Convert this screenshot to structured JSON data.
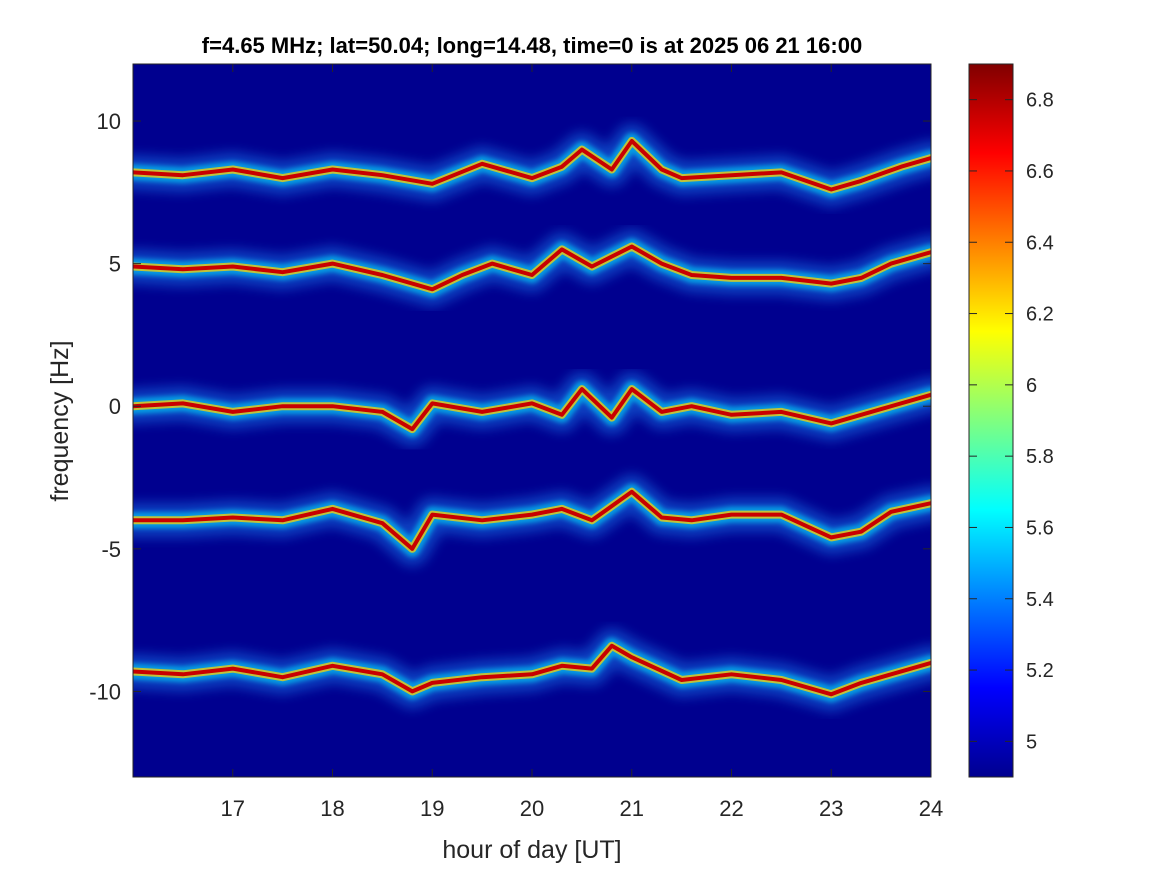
{
  "chart_data": {
    "type": "heatmap",
    "title": "f=4.65 MHz;  lat=50.04; long=14.48, time=0 is at 2025 06 21 16:00",
    "xlabel": "hour of day [UT]",
    "ylabel": "frequency [Hz]",
    "xlim": [
      16,
      24
    ],
    "ylim": [
      -13,
      12
    ],
    "xticks": [
      17,
      18,
      19,
      20,
      21,
      22,
      23,
      24
    ],
    "xtick_labels": [
      "17",
      "18",
      "19",
      "20",
      "21",
      "22",
      "23",
      "24"
    ],
    "yticks": [
      -10,
      -5,
      0,
      5,
      10
    ],
    "ytick_labels": [
      "-10",
      "-5",
      "0",
      "5",
      "10"
    ],
    "colormap": "jet",
    "background_color": "#00008f",
    "colorbar": {
      "range": [
        4.9,
        6.9
      ],
      "ticks": [
        5,
        5.2,
        5.4,
        5.6,
        5.8,
        6,
        6.2,
        6.4,
        6.6,
        6.8
      ],
      "tick_labels": [
        "5",
        "5.2",
        "5.4",
        "5.6",
        "5.8",
        "6",
        "6.2",
        "6.4",
        "6.6",
        "6.8"
      ],
      "position": "right"
    },
    "traces": [
      {
        "base": 8.2,
        "x": [
          16.0,
          16.5,
          17.0,
          17.5,
          18.0,
          18.5,
          19.0,
          19.5,
          20.0,
          20.3,
          20.5,
          20.8,
          21.0,
          21.3,
          21.5,
          22.0,
          22.5,
          23.0,
          23.3,
          23.7,
          24.0
        ],
        "y": [
          8.2,
          8.1,
          8.3,
          8.0,
          8.3,
          8.1,
          7.8,
          8.5,
          8.0,
          8.4,
          9.0,
          8.3,
          9.3,
          8.3,
          8.0,
          8.1,
          8.2,
          7.6,
          7.9,
          8.4,
          8.7
        ]
      },
      {
        "base": 4.9,
        "x": [
          16.0,
          16.5,
          17.0,
          17.5,
          18.0,
          18.5,
          19.0,
          19.3,
          19.6,
          20.0,
          20.3,
          20.6,
          21.0,
          21.3,
          21.6,
          22.0,
          22.5,
          23.0,
          23.3,
          23.6,
          24.0
        ],
        "y": [
          4.9,
          4.8,
          4.9,
          4.7,
          5.0,
          4.6,
          4.1,
          4.6,
          5.0,
          4.6,
          5.5,
          4.9,
          5.6,
          5.0,
          4.6,
          4.5,
          4.5,
          4.3,
          4.5,
          5.0,
          5.4
        ]
      },
      {
        "base": 0.0,
        "x": [
          16.0,
          16.5,
          17.0,
          17.5,
          18.0,
          18.5,
          18.8,
          19.0,
          19.5,
          20.0,
          20.3,
          20.5,
          20.8,
          21.0,
          21.3,
          21.6,
          22.0,
          22.5,
          23.0,
          23.5,
          24.0
        ],
        "y": [
          0.0,
          0.1,
          -0.2,
          0.0,
          0.0,
          -0.2,
          -0.8,
          0.1,
          -0.2,
          0.1,
          -0.3,
          0.6,
          -0.4,
          0.6,
          -0.2,
          0.0,
          -0.3,
          -0.2,
          -0.6,
          -0.1,
          0.4
        ]
      },
      {
        "base": -4.0,
        "x": [
          16.0,
          16.5,
          17.0,
          17.5,
          18.0,
          18.5,
          18.8,
          19.0,
          19.5,
          20.0,
          20.3,
          20.6,
          21.0,
          21.3,
          21.6,
          22.0,
          22.5,
          23.0,
          23.3,
          23.6,
          24.0
        ],
        "y": [
          -4.0,
          -4.0,
          -3.9,
          -4.0,
          -3.6,
          -4.1,
          -5.0,
          -3.8,
          -4.0,
          -3.8,
          -3.6,
          -4.0,
          -3.0,
          -3.9,
          -4.0,
          -3.8,
          -3.8,
          -4.6,
          -4.4,
          -3.7,
          -3.4
        ]
      },
      {
        "base": -9.3,
        "x": [
          16.0,
          16.5,
          17.0,
          17.5,
          18.0,
          18.5,
          18.8,
          19.0,
          19.5,
          20.0,
          20.3,
          20.6,
          20.8,
          21.0,
          21.5,
          22.0,
          22.5,
          23.0,
          23.3,
          23.6,
          24.0
        ],
        "y": [
          -9.3,
          -9.4,
          -9.2,
          -9.5,
          -9.1,
          -9.4,
          -10.0,
          -9.7,
          -9.5,
          -9.4,
          -9.1,
          -9.2,
          -8.4,
          -8.8,
          -9.6,
          -9.4,
          -9.6,
          -10.1,
          -9.7,
          -9.4,
          -9.0
        ]
      }
    ]
  }
}
